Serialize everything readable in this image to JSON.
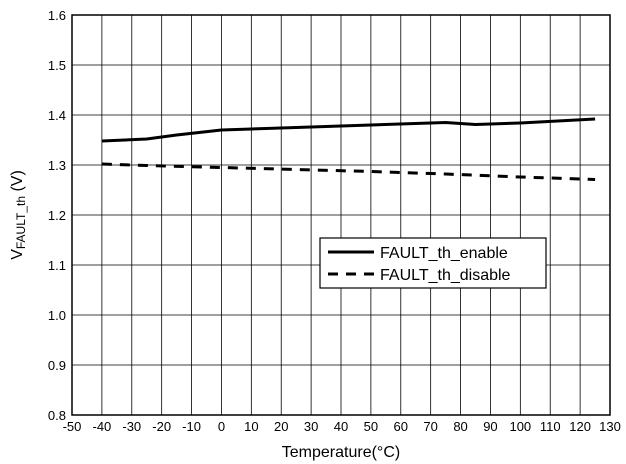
{
  "chart_data": {
    "type": "line",
    "xlabel": "Temperature(°C)",
    "ylabel": {
      "main": "V",
      "sub": "FAULT_th",
      "unit": " (V)"
    },
    "xlim": [
      -50,
      130
    ],
    "ylim": [
      0.8,
      1.6
    ],
    "x_ticks": [
      -50,
      -40,
      -30,
      -20,
      -10,
      0,
      10,
      20,
      30,
      40,
      50,
      60,
      70,
      80,
      90,
      100,
      110,
      120,
      130
    ],
    "y_ticks": [
      0.8,
      0.9,
      1.0,
      1.1,
      1.2,
      1.3,
      1.4,
      1.5,
      1.6
    ],
    "grid": true,
    "legend_position": "center-right",
    "series": [
      {
        "name": "FAULT_th_enable",
        "style": "solid",
        "color": "#000000",
        "x": [
          -40,
          -25,
          -15,
          0,
          25,
          50,
          75,
          85,
          100,
          125
        ],
        "y": [
          1.348,
          1.352,
          1.36,
          1.37,
          1.375,
          1.38,
          1.385,
          1.381,
          1.384,
          1.392
        ]
      },
      {
        "name": "FAULT_th_disable",
        "style": "dashed",
        "color": "#000000",
        "x": [
          -40,
          -25,
          0,
          25,
          50,
          75,
          100,
          125
        ],
        "y": [
          1.302,
          1.299,
          1.295,
          1.291,
          1.287,
          1.282,
          1.276,
          1.271
        ]
      }
    ]
  }
}
